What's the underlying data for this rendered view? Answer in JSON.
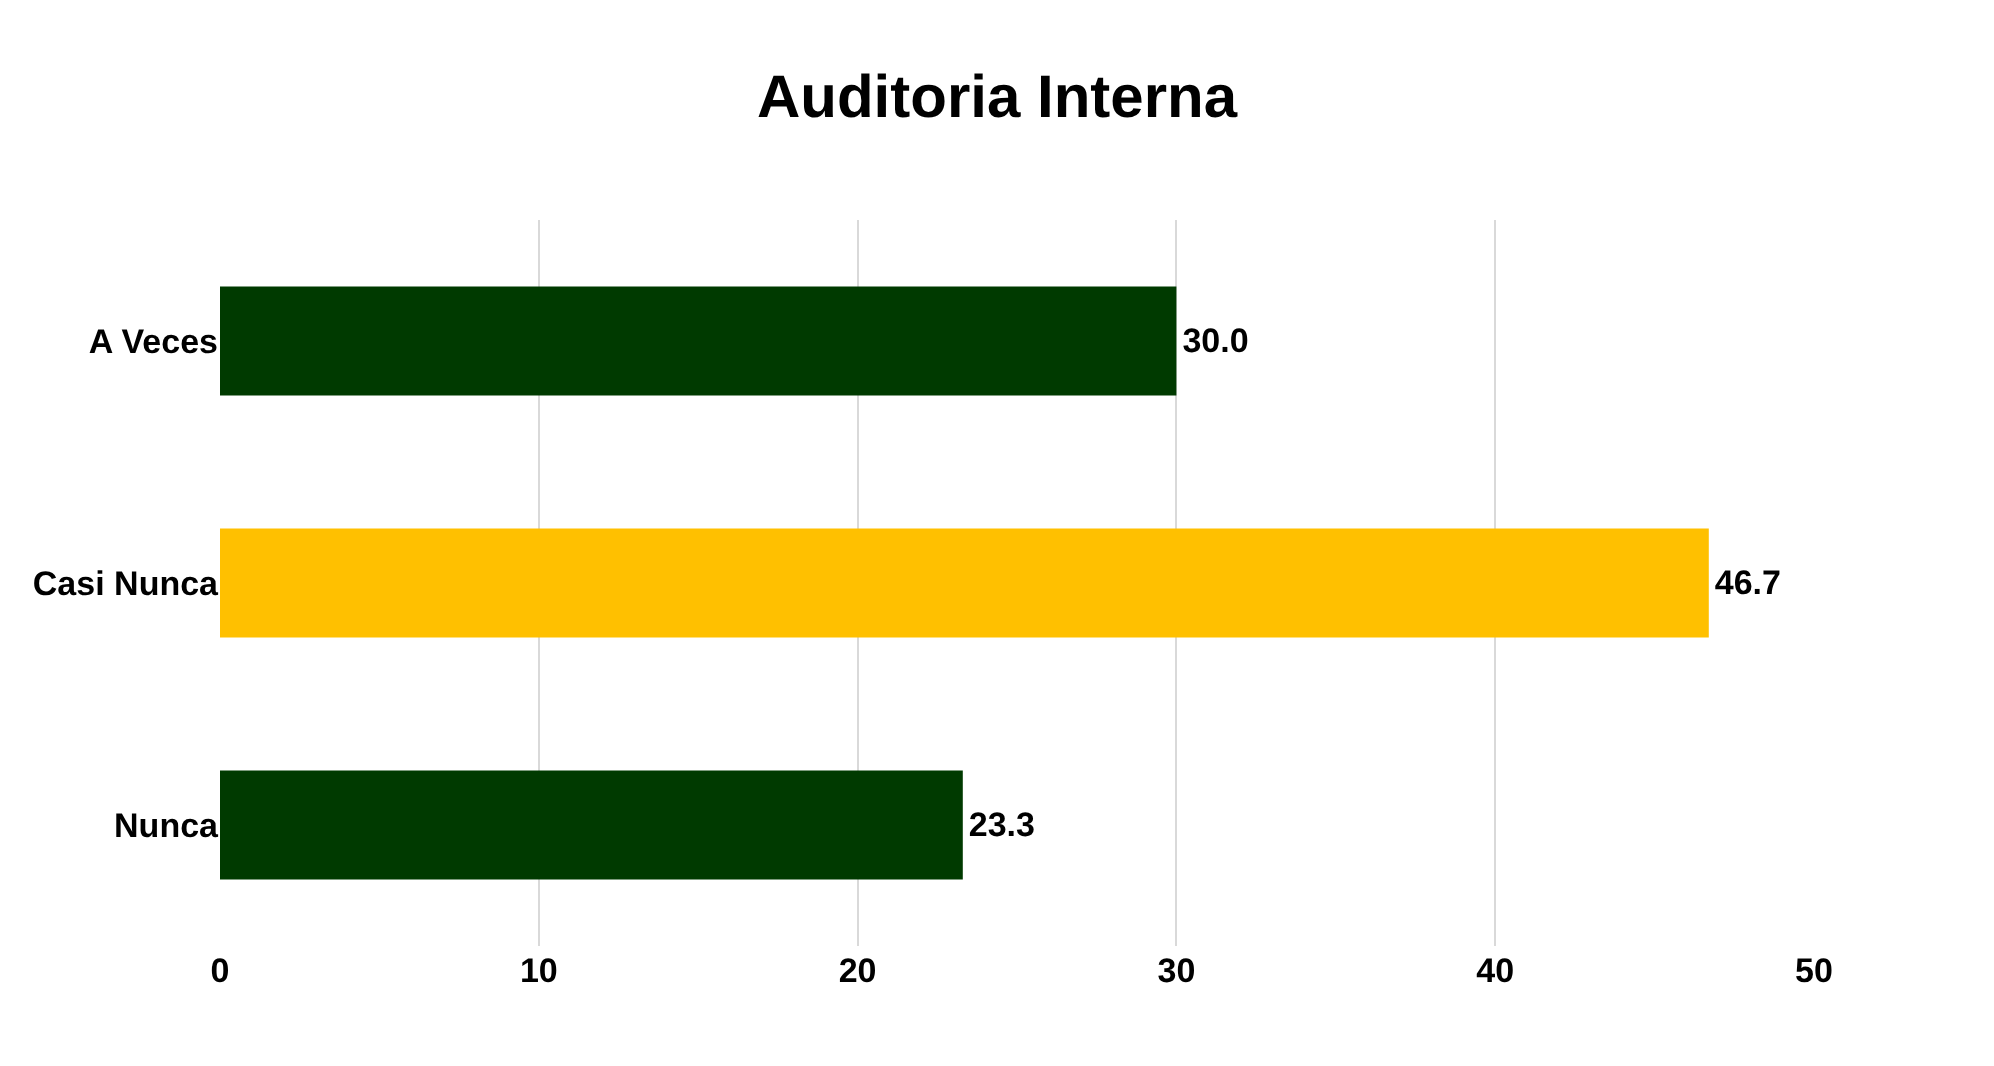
{
  "chart_data": {
    "type": "bar",
    "orientation": "horizontal",
    "title": "Auditoria Interna",
    "categories": [
      "A Veces",
      "Casi Nunca",
      "Nunca"
    ],
    "values": [
      30.0,
      46.7,
      23.3
    ],
    "colors": [
      "#003a00",
      "#ffc000",
      "#003a00"
    ],
    "value_labels": [
      "30.0",
      "46.7",
      "23.3"
    ],
    "xlim": [
      0,
      50
    ],
    "xticks": [
      0,
      10,
      20,
      30,
      40,
      50
    ],
    "grid": "x"
  }
}
